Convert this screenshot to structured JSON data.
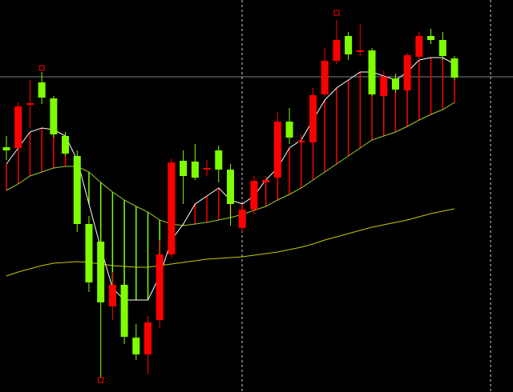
{
  "chart_data": {
    "type": "candlestick",
    "ylim": [
      0,
      490
    ],
    "up_color": "#ff0000",
    "down_color": "#7fff00",
    "open": [
      306,
      305,
      359,
      387,
      367,
      320,
      295,
      210,
      188,
      107,
      134,
      68,
      47,
      90,
      172,
      289,
      288,
      278,
      302,
      278,
      205,
      228,
      262,
      268,
      338,
      312,
      312,
      372,
      414,
      445,
      425,
      427,
      370,
      392,
      377,
      419,
      445,
      440,
      417
    ],
    "high": [
      320,
      362,
      390,
      400,
      370,
      325,
      302,
      220,
      195,
      150,
      150,
      85,
      95,
      190,
      292,
      302,
      310,
      290,
      308,
      285,
      235,
      270,
      270,
      350,
      355,
      322,
      380,
      430,
      465,
      450,
      460,
      430,
      402,
      398,
      424,
      450,
      454,
      450,
      420
    ],
    "low": [
      290,
      300,
      330,
      360,
      318,
      295,
      200,
      125,
      18,
      90,
      60,
      40,
      22,
      80,
      168,
      235,
      265,
      270,
      262,
      208,
      200,
      222,
      258,
      262,
      310,
      305,
      307,
      370,
      410,
      415,
      420,
      370,
      368,
      374,
      372,
      415,
      435,
      415,
      390
    ],
    "close": [
      302,
      357,
      361,
      368,
      322,
      298,
      210,
      137,
      112,
      134,
      69,
      47,
      87,
      172,
      287,
      270,
      268,
      280,
      278,
      235,
      228,
      264,
      265,
      338,
      318,
      314,
      371,
      414,
      440,
      422,
      427,
      372,
      394,
      378,
      421,
      445,
      440,
      420,
      393
    ],
    "lines": [
      {
        "color": "#ffffff",
        "values": [
          285,
          305,
          325,
          330,
          328,
          320,
          290,
          235,
          180,
          130,
          115,
          115,
          115,
          145,
          190,
          210,
          235,
          245,
          255,
          240,
          235,
          245,
          265,
          280,
          305,
          315,
          340,
          365,
          380,
          390,
          400,
          400,
          395,
          390,
          400,
          415,
          418,
          418,
          410
        ]
      },
      {
        "color": "#9acd32",
        "values": [
          252,
          260,
          270,
          275,
          280,
          282,
          282,
          275,
          262,
          250,
          240,
          232,
          225,
          215,
          210,
          208,
          210,
          212,
          215,
          218,
          222,
          227,
          232,
          240,
          247,
          255,
          265,
          275,
          285,
          295,
          305,
          315,
          320,
          325,
          332,
          340,
          347,
          353,
          362
        ]
      },
      {
        "color": "#c8c800",
        "values": [
          145,
          150,
          154,
          158,
          161,
          162,
          163,
          162,
          160,
          158,
          157,
          156,
          156,
          158,
          160,
          162,
          164,
          166,
          167,
          168,
          169,
          171,
          173,
          175,
          178,
          181,
          185,
          190,
          194,
          198,
          202,
          206,
          209,
          212,
          215,
          219,
          223,
          226,
          229
        ]
      }
    ],
    "fractal_high": [
      null,
      null,
      null,
      405,
      null,
      null,
      null,
      null,
      null,
      null,
      null,
      null,
      null,
      null,
      null,
      null,
      null,
      null,
      null,
      null,
      null,
      null,
      null,
      null,
      null,
      null,
      null,
      null,
      474,
      null,
      null,
      null,
      null,
      null,
      null,
      null,
      null,
      null,
      null
    ],
    "fractal_low": [
      null,
      null,
      null,
      null,
      null,
      null,
      null,
      null,
      15,
      null,
      null,
      null,
      null,
      null,
      null,
      null,
      null,
      null,
      null,
      null,
      null,
      null,
      null,
      null,
      null,
      null,
      null,
      null,
      null,
      null,
      null,
      null,
      null,
      null,
      null,
      null,
      null,
      null,
      null
    ],
    "hline": 394,
    "hline_color": "#808080"
  }
}
